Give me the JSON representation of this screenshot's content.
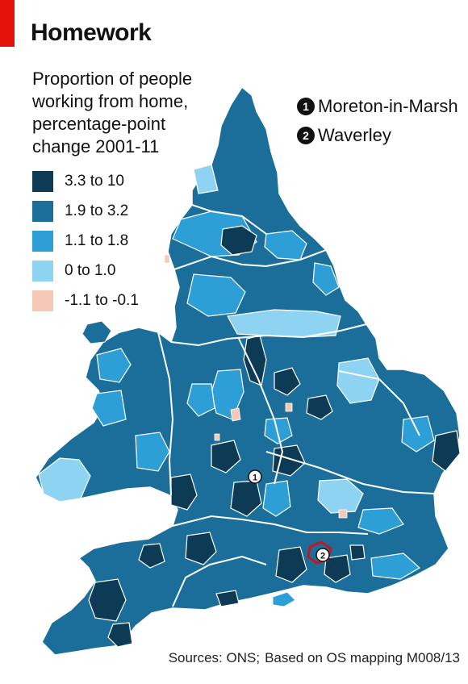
{
  "title": "Homework",
  "subtitle": [
    "Proportion of people",
    "working from home,",
    "percentage-point",
    "change 2001-11"
  ],
  "legend": [
    {
      "label": "3.3 to 10",
      "color": "#0d3a54"
    },
    {
      "label": "1.9 to 3.2",
      "color": "#1b6e9a"
    },
    {
      "label": "1.1 to 1.8",
      "color": "#2d9fd6"
    },
    {
      "label": "0 to 1.0",
      "color": "#8ed3f2"
    },
    {
      "label": "-1.1 to -0.1",
      "color": "#f5c9b6"
    }
  ],
  "callouts": [
    {
      "number": "1",
      "label": "Moreton-in-Marsh"
    },
    {
      "number": "2",
      "label": "Waverley"
    }
  ],
  "source": {
    "prefix": "Sources: ONS;",
    "rest": "Based on OS mapping M008/13"
  },
  "colors": {
    "accent": "#e3120b",
    "border": "#ffffff",
    "highlight": "#c4161c"
  }
}
